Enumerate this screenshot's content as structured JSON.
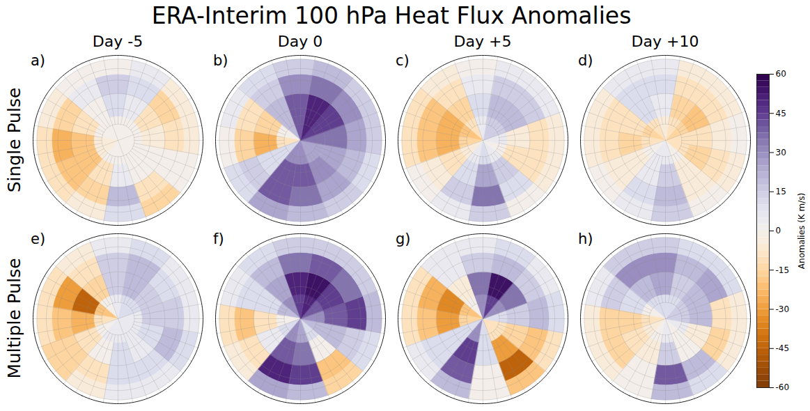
{
  "chart_data": {
    "type": "heatmap",
    "title": "ERA-Interim 100 hPa Heat Flux Anomalies",
    "columns": [
      "Day -5",
      "Day 0",
      "Day +5",
      "Day +10"
    ],
    "rows": [
      "Single Pulse",
      "Multiple Pulse"
    ],
    "lat_edges": [
      90,
      75,
      60,
      45,
      30
    ],
    "lon_edges": [
      -180,
      -150,
      -120,
      -90,
      -60,
      -30,
      0,
      30,
      60,
      90,
      120,
      150,
      180
    ],
    "colorbar": {
      "label": "Anomalies (K m/s)",
      "range": [
        -60,
        60
      ],
      "ticks": [
        -60,
        -45,
        -30,
        -15,
        0,
        15,
        30,
        45,
        60
      ]
    },
    "panels": [
      {
        "label": "a)",
        "row": 0,
        "column": 0,
        "values": [
          [
            0,
            0,
            -5,
            -5,
            0,
            0,
            0,
            0,
            0,
            0,
            0,
            0
          ],
          [
            0,
            -10,
            -20,
            -20,
            -10,
            5,
            0,
            0,
            -5,
            -10,
            5,
            10
          ],
          [
            5,
            -15,
            -25,
            -20,
            -15,
            20,
            -10,
            0,
            -10,
            -15,
            10,
            15
          ],
          [
            0,
            -5,
            -10,
            -10,
            -5,
            10,
            -15,
            0,
            -5,
            -5,
            5,
            0
          ]
        ]
      },
      {
        "label": "b)",
        "row": 0,
        "column": 1,
        "values": [
          [
            20,
            0,
            -10,
            10,
            30,
            30,
            25,
            25,
            35,
            45,
            50,
            40
          ],
          [
            20,
            -15,
            -25,
            10,
            40,
            40,
            30,
            25,
            35,
            45,
            50,
            40
          ],
          [
            15,
            -10,
            -15,
            15,
            40,
            35,
            25,
            20,
            25,
            30,
            35,
            30
          ],
          [
            10,
            5,
            0,
            10,
            25,
            20,
            15,
            10,
            15,
            15,
            20,
            15
          ]
        ]
      },
      {
        "label": "c)",
        "row": 0,
        "column": 2,
        "values": [
          [
            -10,
            -20,
            -15,
            -5,
            5,
            10,
            5,
            0,
            5,
            15,
            15,
            5
          ],
          [
            -15,
            -25,
            -25,
            -10,
            10,
            25,
            15,
            -10,
            -5,
            20,
            20,
            10
          ],
          [
            -10,
            -20,
            -20,
            -5,
            15,
            35,
            10,
            -10,
            -10,
            15,
            15,
            5
          ],
          [
            -5,
            -10,
            -10,
            0,
            5,
            15,
            0,
            -5,
            -5,
            5,
            5,
            0
          ]
        ]
      },
      {
        "label": "d)",
        "row": 0,
        "column": 3,
        "values": [
          [
            -10,
            -15,
            -10,
            0,
            5,
            5,
            0,
            -10,
            -10,
            -15,
            -10,
            -5
          ],
          [
            10,
            -10,
            -15,
            -5,
            5,
            15,
            -5,
            -15,
            -10,
            -20,
            -15,
            5
          ],
          [
            10,
            -10,
            -10,
            -5,
            10,
            20,
            -5,
            -10,
            -5,
            -10,
            -10,
            10
          ],
          [
            5,
            -5,
            -5,
            0,
            5,
            15,
            0,
            -5,
            0,
            -5,
            -5,
            5
          ]
        ]
      },
      {
        "label": "e)",
        "row": 1,
        "column": 0,
        "values": [
          [
            0,
            -20,
            -10,
            0,
            5,
            5,
            5,
            5,
            5,
            10,
            10,
            5
          ],
          [
            -15,
            -45,
            -25,
            -10,
            0,
            10,
            5,
            10,
            15,
            15,
            20,
            15
          ],
          [
            -10,
            -30,
            -20,
            -15,
            -10,
            10,
            10,
            20,
            15,
            10,
            20,
            15
          ],
          [
            -5,
            -10,
            -10,
            -15,
            -5,
            5,
            5,
            10,
            5,
            5,
            10,
            5
          ]
        ]
      },
      {
        "label": "f)",
        "row": 1,
        "column": 1,
        "values": [
          [
            30,
            20,
            0,
            10,
            30,
            25,
            10,
            20,
            30,
            40,
            50,
            45
          ],
          [
            25,
            10,
            -10,
            5,
            40,
            35,
            0,
            20,
            40,
            45,
            55,
            50
          ],
          [
            20,
            10,
            -20,
            -10,
            50,
            45,
            -20,
            15,
            45,
            35,
            40,
            35
          ],
          [
            10,
            5,
            -10,
            -5,
            25,
            20,
            -15,
            10,
            20,
            15,
            15,
            15
          ]
        ]
      },
      {
        "label": "g)",
        "row": 1,
        "column": 2,
        "values": [
          [
            0,
            -20,
            -15,
            10,
            30,
            10,
            -10,
            -10,
            10,
            30,
            45,
            30
          ],
          [
            -5,
            -35,
            -30,
            10,
            45,
            10,
            -30,
            -15,
            15,
            35,
            55,
            35
          ],
          [
            5,
            -25,
            -20,
            10,
            40,
            0,
            -45,
            -20,
            20,
            15,
            20,
            15
          ],
          [
            5,
            -10,
            -10,
            5,
            20,
            0,
            -20,
            -10,
            10,
            5,
            10,
            5
          ]
        ]
      },
      {
        "label": "h)",
        "row": 1,
        "column": 3,
        "values": [
          [
            10,
            0,
            -10,
            -5,
            0,
            5,
            0,
            5,
            15,
            15,
            10,
            10
          ],
          [
            20,
            10,
            -15,
            -10,
            -5,
            15,
            0,
            -5,
            20,
            20,
            15,
            25
          ],
          [
            30,
            15,
            -15,
            -15,
            0,
            40,
            20,
            -15,
            -10,
            25,
            20,
            30
          ],
          [
            15,
            5,
            -5,
            -5,
            0,
            20,
            10,
            -5,
            -5,
            10,
            10,
            15
          ]
        ]
      }
    ]
  }
}
